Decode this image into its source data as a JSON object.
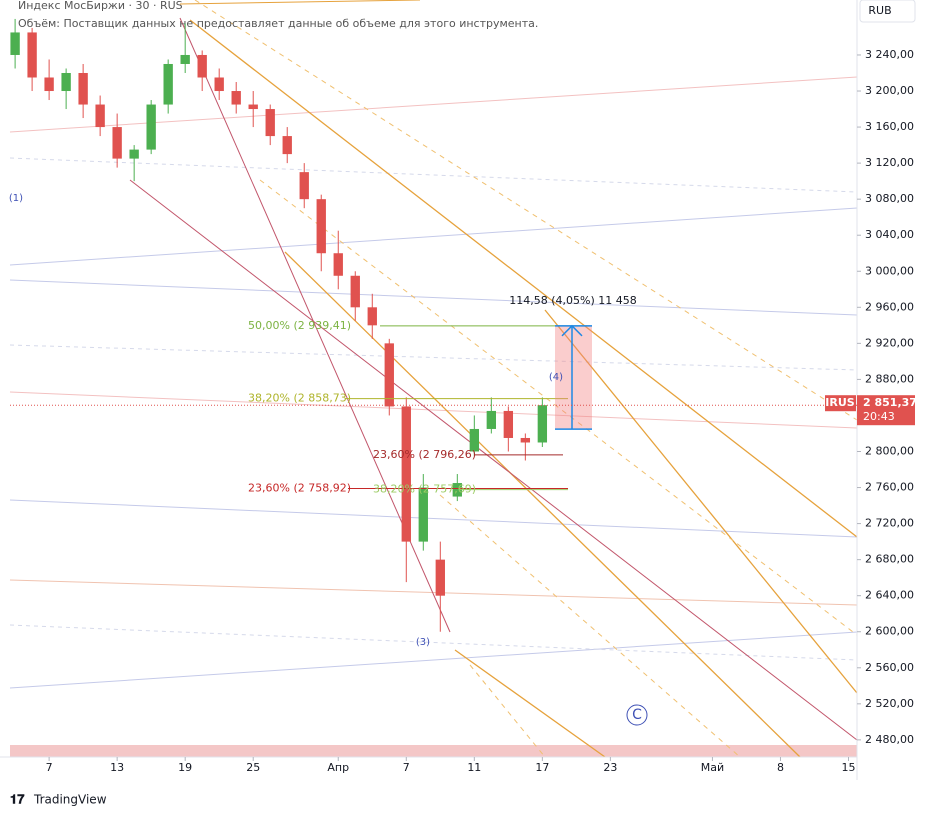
{
  "header": {
    "title": "Индекс МосБиржи · 30 · RUS",
    "volume_note": "Объём: Поставщик данных не предоставляет данные об объеме для этого инструмента.",
    "currency": "RUB"
  },
  "footer": {
    "brand": "TradingView"
  },
  "chart_data": {
    "type": "candlestick",
    "x": [
      -2,
      -1,
      0,
      1,
      2,
      3,
      4,
      5,
      6,
      7,
      8,
      9,
      10,
      11,
      12,
      13,
      14,
      15,
      16,
      17,
      18,
      19,
      20,
      21,
      22,
      23,
      24,
      25,
      26,
      27,
      28,
      29
    ],
    "open": [
      3240,
      3265,
      3215,
      3200,
      3220,
      3185,
      3160,
      3125,
      3135,
      3185,
      3230,
      3240,
      3215,
      3200,
      3185,
      3180,
      3150,
      3110,
      3080,
      3020,
      2995,
      2960,
      2920,
      2850,
      2700,
      2680,
      2750,
      2800,
      2825,
      2845,
      2815,
      2810
    ],
    "high": [
      3280,
      3270,
      3235,
      3225,
      3230,
      3195,
      3175,
      3140,
      3190,
      3235,
      3275,
      3245,
      3225,
      3210,
      3200,
      3185,
      3160,
      3120,
      3085,
      3045,
      3000,
      2975,
      2925,
      2860,
      2775,
      2700,
      2775,
      2840,
      2860,
      2850,
      2820,
      2860
    ],
    "low": [
      3225,
      3200,
      3190,
      3180,
      3170,
      3150,
      3115,
      3100,
      3130,
      3175,
      3220,
      3200,
      3190,
      3175,
      3160,
      3140,
      3120,
      3070,
      3000,
      2980,
      2945,
      2925,
      2840,
      2655,
      2690,
      2600,
      2745,
      2795,
      2820,
      2800,
      2790,
      2805
    ],
    "close": [
      3265,
      3215,
      3200,
      3220,
      3185,
      3160,
      3125,
      3135,
      3185,
      3230,
      3240,
      3215,
      3200,
      3185,
      3180,
      3150,
      3130,
      3080,
      3020,
      2995,
      2960,
      2940,
      2850,
      2700,
      2760,
      2640,
      2765,
      2825,
      2845,
      2815,
      2810,
      2851.37
    ],
    "up_color": "#4caf50",
    "down_color": "#e0524f",
    "xlim": [
      -2.3,
      47.5
    ],
    "xticks": [
      {
        "value": 0,
        "label": "7"
      },
      {
        "value": 4,
        "label": "13"
      },
      {
        "value": 8,
        "label": "19"
      },
      {
        "value": 12,
        "label": "25"
      },
      {
        "value": 17,
        "label": "Апр"
      },
      {
        "value": 21,
        "label": "7"
      },
      {
        "value": 25,
        "label": "11"
      },
      {
        "value": 29,
        "label": "17"
      },
      {
        "value": 33,
        "label": "23"
      },
      {
        "value": 39,
        "label": "Май"
      },
      {
        "value": 43,
        "label": "8"
      },
      {
        "value": 47,
        "label": "15"
      }
    ],
    "ylim": [
      2461,
      3301
    ],
    "yticks": [
      {
        "value": 3240,
        "label": "3 240,00"
      },
      {
        "value": 3200,
        "label": "3 200,00"
      },
      {
        "value": 3160,
        "label": "3 160,00"
      },
      {
        "value": 3120,
        "label": "3 120,00"
      },
      {
        "value": 3080,
        "label": "3 080,00"
      },
      {
        "value": 3040,
        "label": "3 040,00"
      },
      {
        "value": 3000,
        "label": "3 000,00"
      },
      {
        "value": 2960,
        "label": "2 960,00"
      },
      {
        "value": 2920,
        "label": "2 920,00"
      },
      {
        "value": 2880,
        "label": "2 880,00"
      },
      {
        "value": 2840,
        "label": "2 840,00"
      },
      {
        "value": 2800,
        "label": "2 800,00"
      },
      {
        "value": 2760,
        "label": "2 760,00"
      },
      {
        "value": 2720,
        "label": "2 720,00"
      },
      {
        "value": 2680,
        "label": "2 680,00"
      },
      {
        "value": 2640,
        "label": "2 640,00"
      },
      {
        "value": 2600,
        "label": "2 600,00"
      },
      {
        "value": 2560,
        "label": "2 560,00"
      },
      {
        "value": 2520,
        "label": "2 520,00"
      },
      {
        "value": 2480,
        "label": "2 480,00"
      }
    ],
    "last_price": {
      "symbol": "IRUS",
      "value": 2851.37,
      "label": "2 851,37",
      "countdown": "20:43",
      "color": "#e0524f"
    },
    "fib_levels": [
      {
        "label": "50,00% (2 939,41)",
        "value": 2939.41,
        "color": "#7cb342"
      },
      {
        "label": "38,20% (2 858,73)",
        "value": 2858.73,
        "color": "#afb42b"
      },
      {
        "label": "23,60% (2 796,26)",
        "value": 2796.26,
        "color": "#a52a2a"
      },
      {
        "label": "23,60% (2 758,92)",
        "value": 2758.92,
        "color": "#c62828"
      },
      {
        "label": "38,20% (2 757,69)",
        "value": 2757.69,
        "color": "#9ccc65"
      }
    ],
    "measure": {
      "label": "114,58 (4,05%) 11 458",
      "from": 2824.83,
      "to": 2939.41,
      "color": "#1e88e5"
    },
    "waves": [
      "(1)",
      "(3)",
      "(4)",
      "C"
    ]
  }
}
